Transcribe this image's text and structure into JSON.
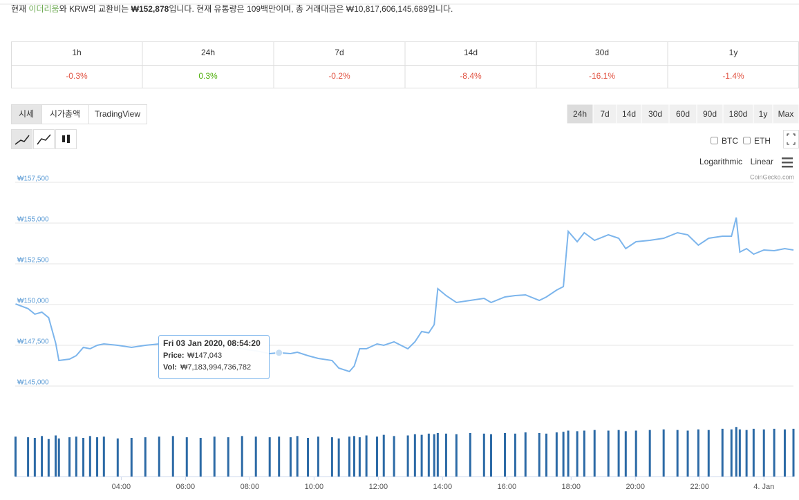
{
  "header": {
    "segments": [
      "현재 ",
      "이더리움",
      "와 KRW의 교환비는 ",
      "₩152,878",
      "입니다. 현재 유통량은 109백만이며, 총 거래대금은 ",
      "₩10,817,606,145,689",
      "입니다."
    ]
  },
  "table": {
    "periods": [
      "1h",
      "24h",
      "7d",
      "14d",
      "30d",
      "1y"
    ],
    "changes": [
      "-0.3%",
      "0.3%",
      "-0.2%",
      "-8.4%",
      "-16.1%",
      "-1.4%"
    ]
  },
  "tabs": [
    "시세",
    "시가총액",
    "TradingView"
  ],
  "ranges": [
    "24h",
    "7d",
    "14d",
    "30d",
    "60d",
    "90d",
    "180d",
    "1y",
    "Max"
  ],
  "compare": [
    "BTC",
    "ETH"
  ],
  "scale_options": [
    "Logarithmic",
    "Linear"
  ],
  "credit": "CoinGecko.com",
  "tooltip": {
    "date": "Fri 03 Jan 2020, 08:54:20",
    "price_label": "Price:",
    "price": "₩147,043",
    "vol_label": "Vol:",
    "vol": "₩7,183,994,736,782"
  },
  "chart_data": {
    "type": "line",
    "color": "#7cb5ec",
    "volume_color": "#2c6aa6",
    "grid": true,
    "x": [
      0.71,
      1.1,
      1.31,
      1.53,
      1.74,
      1.96,
      2.06,
      2.39,
      2.6,
      2.82,
      3.03,
      3.25,
      3.46,
      3.89,
      4.32,
      4.75,
      5.18,
      5.61,
      6.04,
      6.47,
      6.9,
      7.33,
      7.76,
      8.19,
      8.62,
      8.91,
      9.27,
      9.48,
      9.81,
      10.13,
      10.56,
      10.77,
      11.1,
      11.25,
      11.42,
      11.63,
      11.96,
      12.17,
      12.49,
      12.92,
      13.14,
      13.35,
      13.57,
      13.74,
      13.85,
      14.11,
      14.43,
      14.86,
      15.29,
      15.51,
      15.94,
      16.26,
      16.58,
      17.01,
      17.23,
      17.55,
      17.76,
      17.91,
      18.19,
      18.41,
      18.73,
      19.16,
      19.48,
      19.7,
      20.02,
      20.45,
      20.88,
      21.31,
      21.63,
      21.96,
      22.28,
      22.71,
      22.99,
      23.14,
      23.25,
      23.46,
      23.68,
      24.0,
      24.32,
      24.65,
      24.92
    ],
    "series": [
      {
        "name": "Price",
        "values": [
          150040,
          149750,
          149410,
          149534,
          149195,
          147627,
          146568,
          146652,
          146864,
          147373,
          147288,
          147500,
          147585,
          147500,
          147373,
          147500,
          147585,
          147500,
          147627,
          147415,
          147500,
          147500,
          147288,
          147161,
          146992,
          147043,
          146992,
          147076,
          146864,
          146695,
          146568,
          146102,
          145890,
          146229,
          147288,
          147288,
          147585,
          147500,
          147712,
          147288,
          147712,
          148347,
          148262,
          148771,
          150974,
          150550,
          150127,
          150254,
          150381,
          150127,
          150466,
          150550,
          150593,
          150254,
          150466,
          150889,
          151101,
          154491,
          153855,
          154406,
          153940,
          154279,
          154067,
          153432,
          153855,
          153940,
          154067,
          154406,
          154279,
          153644,
          154067,
          154194,
          154194,
          155338,
          153220,
          153432,
          153093,
          153347,
          153305,
          153432,
          153347
        ]
      },
      {
        "name": "Volume",
        "values": [
          6.6,
          6.5,
          6.4,
          6.7,
          6.2,
          6.8,
          6.3,
          6.5,
          6.6,
          6.4,
          6.7,
          6.5,
          6.6,
          6.3,
          6.4,
          6.5,
          6.6,
          6.7,
          6.5,
          6.4,
          6.6,
          6.5,
          6.7,
          6.6,
          6.5,
          6.6,
          6.5,
          6.7,
          6.4,
          6.6,
          6.5,
          6.3,
          6.6,
          6.7,
          6.5,
          6.8,
          6.6,
          6.9,
          6.7,
          6.8,
          7.0,
          6.9,
          7.1,
          7.0,
          7.2,
          7.1,
          7.0,
          7.2,
          7.1,
          7.0,
          7.2,
          7.1,
          7.3,
          7.2,
          7.1,
          7.3,
          7.4,
          7.6,
          7.5,
          7.6,
          7.7,
          7.6,
          7.7,
          7.5,
          7.6,
          7.7,
          7.8,
          7.7,
          7.6,
          7.8,
          7.7,
          7.9,
          7.8,
          8.2,
          7.8,
          7.7,
          7.9,
          7.8,
          7.9,
          7.8,
          7.9
        ]
      }
    ],
    "xlim": [
      0.7,
      24.92
    ],
    "xticks": [
      {
        "value": 4,
        "label": "04:00"
      },
      {
        "value": 6,
        "label": "06:00"
      },
      {
        "value": 8,
        "label": "08:00"
      },
      {
        "value": 10,
        "label": "10:00"
      },
      {
        "value": 12,
        "label": "12:00"
      },
      {
        "value": 14,
        "label": "14:00"
      },
      {
        "value": 16,
        "label": "16:00"
      },
      {
        "value": 18,
        "label": "18:00"
      },
      {
        "value": 20,
        "label": "20:00"
      },
      {
        "value": 22,
        "label": "22:00"
      },
      {
        "value": 24,
        "label": "4. Jan"
      }
    ],
    "ylim": [
      145000,
      157500
    ],
    "yticks": [
      {
        "value": 145000,
        "label": "₩145,000"
      },
      {
        "value": 147500,
        "label": "₩147,500"
      },
      {
        "value": 150000,
        "label": "₩150,000"
      },
      {
        "value": 152500,
        "label": "₩152,500"
      },
      {
        "value": 155000,
        "label": "₩155,000"
      },
      {
        "value": 157500,
        "label": "₩157,500"
      }
    ],
    "volume_ylim": [
      0,
      16
    ]
  }
}
